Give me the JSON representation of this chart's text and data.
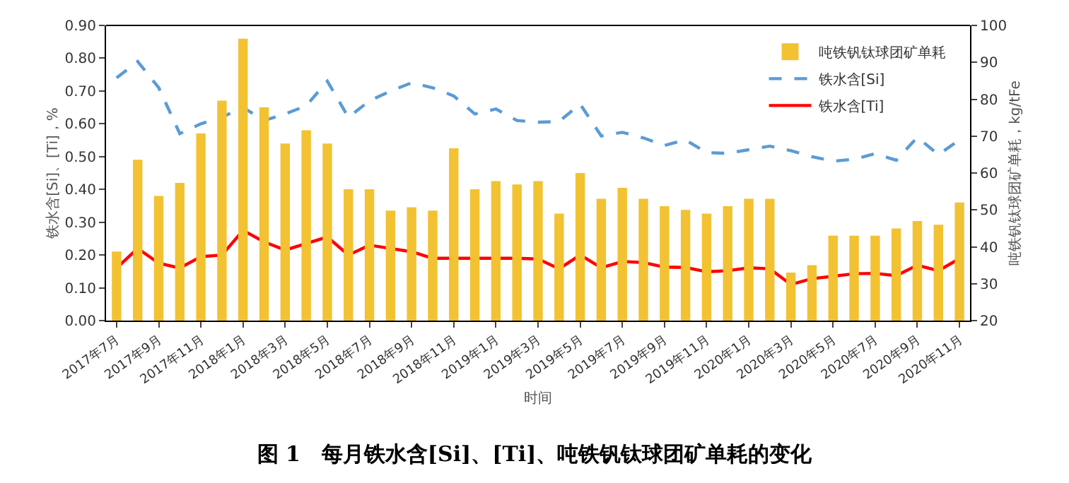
{
  "chart_data": {
    "type": "bar",
    "title": "图 1　每月铁水含[Si]、[Ti]、吨铁钒钛球团矿单耗的变化",
    "xlabel": "时间",
    "ylabel": "铁水含[Si]、[Ti]，%",
    "y2label": "吨铁钒钛球团矿单耗，kg/tFe",
    "categories": [
      "2017年7月",
      null,
      "2017年9月",
      null,
      "2017年11月",
      null,
      "2018年1月",
      null,
      "2018年3月",
      null,
      "2018年5月",
      null,
      "2018年7月",
      null,
      "2018年9月",
      null,
      "2018年11月",
      null,
      "2019年1月",
      null,
      "2019年3月",
      null,
      "2019年5月",
      null,
      "2019年7月",
      null,
      "2019年9月",
      null,
      "2019年11月",
      null,
      "2020年1月",
      null,
      "2020年3月",
      null,
      "2020年5月",
      null,
      "2020年7月",
      null,
      "2020年9月",
      null,
      "2020年11月"
    ],
    "series": [
      {
        "name": "吨铁钒钛球团矿单耗",
        "axis": "y2",
        "color": "#f2c233",
        "values": [
          38.7,
          63.6,
          53.8,
          57.3,
          70.7,
          79.6,
          96.4,
          77.8,
          68,
          71.6,
          68,
          55.6,
          55.6,
          49.8,
          50.7,
          49.8,
          66.7,
          55.6,
          57.8,
          56.9,
          57.8,
          49,
          60,
          53,
          56,
          53,
          51,
          50,
          49,
          51,
          53,
          53,
          33,
          35,
          43,
          43,
          43,
          45,
          47,
          46,
          52
        ]
      },
      {
        "name": "铁水含[Si]",
        "type": "line",
        "color": "#5b9bd5",
        "line_style": "dashed",
        "values": [
          0.74,
          0.79,
          0.71,
          0.57,
          0.6,
          0.62,
          0.65,
          0.61,
          0.63,
          0.655,
          0.73,
          0.62,
          0.67,
          0.7,
          0.725,
          0.71,
          0.685,
          0.63,
          0.645,
          0.61,
          0.605,
          0.607,
          0.66,
          0.563,
          0.574,
          0.557,
          0.534,
          0.551,
          0.512,
          0.51,
          0.521,
          0.532,
          0.518,
          0.5,
          0.486,
          0.492,
          0.509,
          0.489,
          0.559,
          0.506,
          0.551
        ]
      },
      {
        "name": "铁水含[Ti]",
        "type": "line",
        "color": "#ff0000",
        "line_style": "solid",
        "values": [
          0.16,
          0.22,
          0.175,
          0.16,
          0.195,
          0.2,
          0.275,
          0.24,
          0.215,
          0.235,
          0.255,
          0.2,
          0.23,
          0.22,
          0.21,
          0.19,
          0.19,
          0.19,
          0.19,
          0.19,
          0.188,
          0.158,
          0.2,
          0.161,
          0.18,
          0.177,
          0.163,
          0.162,
          0.149,
          0.152,
          0.161,
          0.158,
          0.11,
          0.128,
          0.135,
          0.143,
          0.144,
          0.137,
          0.169,
          0.152,
          0.189
        ]
      }
    ],
    "ylim": [
      0,
      0.9
    ],
    "yticks": [
      {
        "value": 0,
        "label": "0.00"
      },
      {
        "value": 0.1,
        "label": "0.10"
      },
      {
        "value": 0.2,
        "label": "0.20"
      },
      {
        "value": 0.3,
        "label": "0.30"
      },
      {
        "value": 0.4,
        "label": "0.40"
      },
      {
        "value": 0.5,
        "label": "0.50"
      },
      {
        "value": 0.6,
        "label": "0.60"
      },
      {
        "value": 0.7,
        "label": "0.70"
      },
      {
        "value": 0.8,
        "label": "0.80"
      },
      {
        "value": 0.9,
        "label": "0.90"
      }
    ],
    "y2lim": [
      20,
      100
    ],
    "y2ticks": [
      20,
      30,
      40,
      50,
      60,
      70,
      80,
      90,
      100
    ],
    "grid": false,
    "legend": "top right",
    "marker": "none"
  }
}
